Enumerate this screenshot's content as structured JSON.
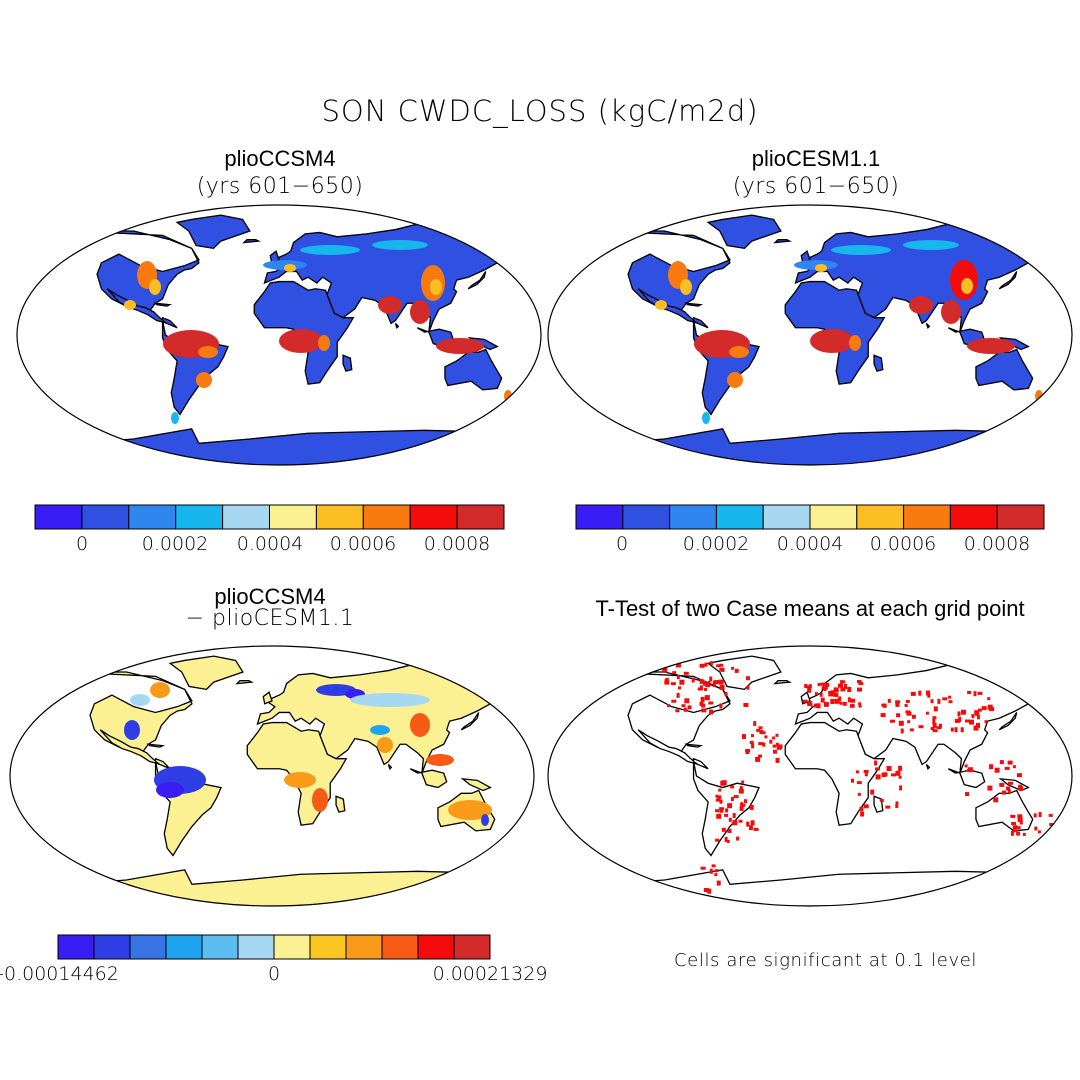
{
  "figure": {
    "title": "SON CWDC_LOSS (kgC/m2d)"
  },
  "panels": [
    {
      "title": "plioCCSM4",
      "subtitle": "(yrs 601−650)",
      "field": "mean"
    },
    {
      "title": "plioCESM1.1",
      "subtitle": "(yrs 601−650)",
      "field": "mean"
    },
    {
      "title": "plioCCSM4",
      "subtitle": "− plioCESM1.1",
      "field": "difference"
    },
    {
      "title": "T-Test of two Case means at each grid point",
      "subtitle": "",
      "field": "significance"
    }
  ],
  "colorbars": {
    "mean": {
      "colors": [
        "#3a1cf5",
        "#2f50e0",
        "#2f86ee",
        "#18b6ef",
        "#a6d8f2",
        "#fbf193",
        "#fcbe22",
        "#f97a0f",
        "#f40b0b",
        "#d32a2a"
      ],
      "tick_labels": [
        "0",
        "0.0002",
        "0.0004",
        "0.0006",
        "0.0008"
      ]
    },
    "difference": {
      "colors": [
        "#3a1cf5",
        "#2f3ee4",
        "#3874e6",
        "#1ea4ee",
        "#5cbcf0",
        "#a6d8f2",
        "#fbf193",
        "#fcc622",
        "#f99a18",
        "#f65a14",
        "#f40b0b",
        "#d32a2a"
      ],
      "tick_labels": [
        "-0.00014462",
        "0",
        "0.00021329"
      ]
    }
  },
  "significance_note": "Cells are significant at 0.1 level",
  "map_colors": {
    "ocean": "#ffffff",
    "land_mean": "#2f50e0",
    "land_diff": "#fbf193",
    "significant": "#f40b0b",
    "outline": "#000000"
  }
}
